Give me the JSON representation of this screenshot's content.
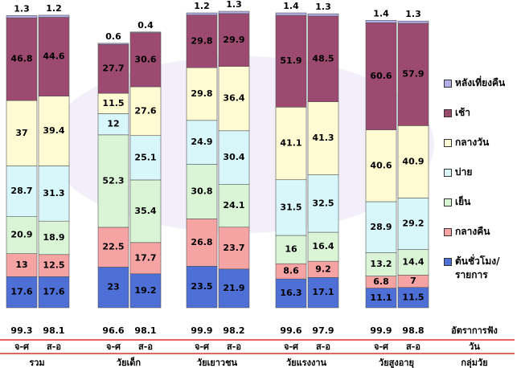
{
  "chart_data": {
    "type": "stacked_bar",
    "groups": [
      "รวม",
      "วัยเด็ก",
      "วัยเยาวชน",
      "วัยแรงงาน",
      "วัยสูงอายุ"
    ],
    "categories": [
      "จ-ศ",
      "ส-อ",
      "จ-ศ",
      "ส-อ",
      "จ-ศ",
      "ส-อ",
      "จ-ศ",
      "ส-อ",
      "จ-ศ",
      "ส-อ"
    ],
    "series": [
      {
        "name": "ต้นชั่วโมง/ รายการ",
        "color": "#4d6fd6",
        "values": [
          17.6,
          17.6,
          23.0,
          19.2,
          23.5,
          21.9,
          16.3,
          17.1,
          11.1,
          11.5
        ]
      },
      {
        "name": "กลางคืน",
        "color": "#f5a3a3",
        "values": [
          13.0,
          12.5,
          22.5,
          17.7,
          26.8,
          23.7,
          8.6,
          9.2,
          6.8,
          7.0
        ]
      },
      {
        "name": "เย็น",
        "color": "#d9f5d6",
        "values": [
          20.9,
          18.9,
          52.3,
          35.4,
          30.8,
          24.1,
          16.0,
          16.4,
          13.2,
          14.4
        ]
      },
      {
        "name": "บ่าย",
        "color": "#d8f7fa",
        "values": [
          28.7,
          31.3,
          12.0,
          25.1,
          24.9,
          30.4,
          31.5,
          32.5,
          28.9,
          29.2
        ]
      },
      {
        "name": "กลางวัน",
        "color": "#fffbd2",
        "values": [
          37.0,
          39.4,
          11.5,
          27.6,
          29.8,
          36.4,
          41.1,
          41.3,
          40.6,
          40.9
        ]
      },
      {
        "name": "เช้า",
        "color": "#9c4a70",
        "values": [
          46.8,
          44.6,
          27.7,
          30.6,
          29.8,
          29.9,
          51.9,
          48.5,
          60.6,
          57.9
        ]
      },
      {
        "name": "หลังเที่ยงคืน",
        "color": "#b4aee8",
        "values": [
          1.3,
          1.2,
          0.6,
          0.4,
          1.2,
          1.3,
          1.4,
          1.3,
          1.4,
          1.3
        ]
      }
    ],
    "totals": {
      "label": "อัตราการฟัง",
      "values": [
        99.3,
        98.1,
        96.6,
        98.1,
        99.9,
        98.2,
        99.6,
        97.9,
        99.9,
        98.8
      ]
    },
    "category_header": "วัน",
    "group_header": "กลุ่มวัย"
  }
}
